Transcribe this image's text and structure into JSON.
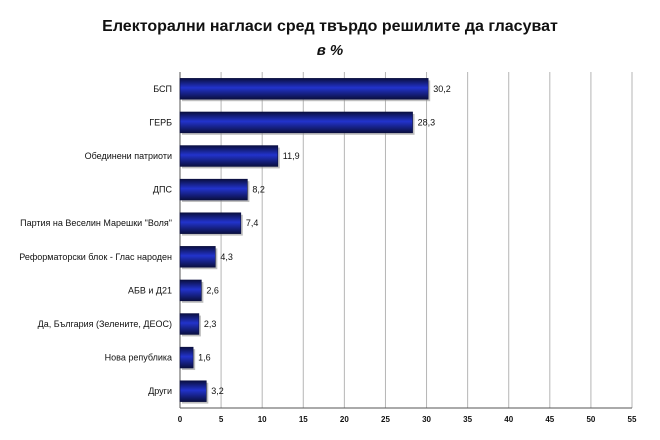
{
  "chart_data": {
    "type": "bar",
    "orientation": "horizontal",
    "title": "Електорални нагласи сред твърдо решилите да гласуват",
    "subtitle": "в %",
    "categories": [
      "БСП",
      "ГЕРБ",
      "Обединени патриоти",
      "ДПС",
      "Партия на Веселин Марешки \"Воля\"",
      "Реформаторски блок - Глас народен",
      "АБВ и Д21",
      "Да, България (Зелените, ДЕОС)",
      "Нова република",
      "Други"
    ],
    "values": [
      30.2,
      28.3,
      11.9,
      8.2,
      7.4,
      4.3,
      2.6,
      2.3,
      1.6,
      3.2
    ],
    "value_labels": [
      "30,2",
      "28,3",
      "11,9",
      "8,2",
      "7,4",
      "4,3",
      "2,6",
      "2,3",
      "1,6",
      "3,2"
    ],
    "xlim": [
      0,
      55
    ],
    "xticks": [
      0,
      5,
      10,
      15,
      20,
      25,
      30,
      35,
      40,
      45,
      50,
      55
    ],
    "grid": true,
    "bar_color": "#2233cc",
    "bar_dark": "#0a0f40"
  }
}
